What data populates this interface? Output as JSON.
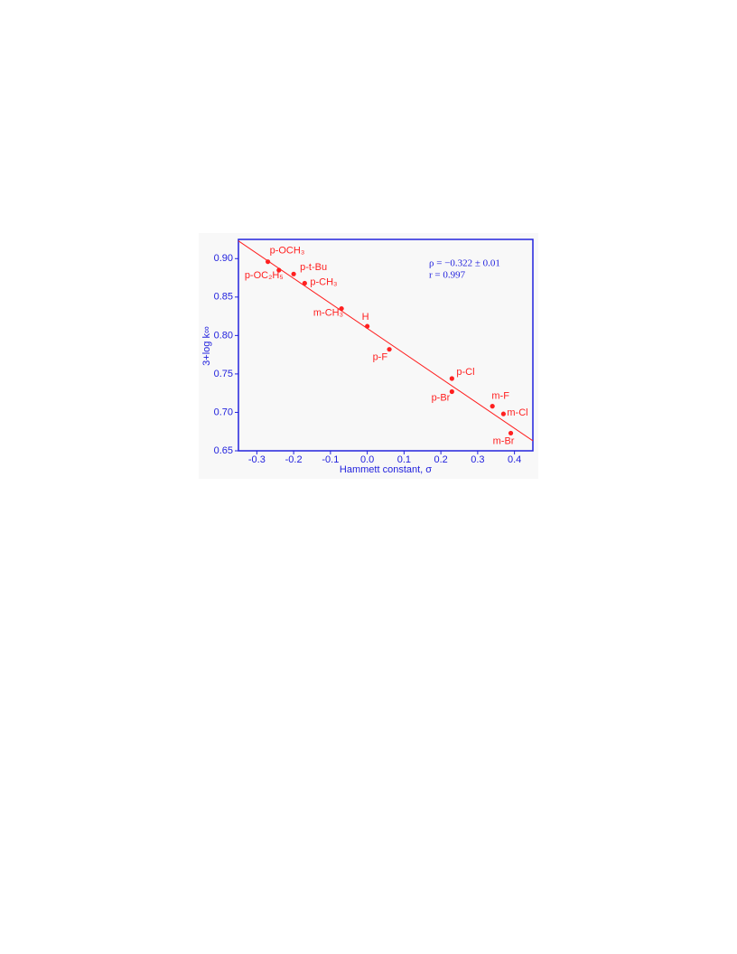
{
  "chart_data": {
    "type": "scatter",
    "xlabel": "Hammett constant, σ",
    "ylabel": "3+log k∞",
    "annotations": [
      "ρ = −0.322 ± 0.01",
      "r = 0.997"
    ],
    "labels": [
      "p-OCH₃",
      "p-OC₂H₅",
      "p-t-Bu",
      "p-CH₃",
      "m-CH₃",
      "H",
      "p-F",
      "p-Cl",
      "p-Br",
      "m-F",
      "m-Cl",
      "m-Br"
    ],
    "x": [
      -0.27,
      -0.24,
      -0.2,
      -0.17,
      -0.07,
      0,
      0.06,
      0.23,
      0.23,
      0.34,
      0.37,
      0.39
    ],
    "values": [
      0.896,
      0.885,
      0.88,
      0.868,
      0.835,
      0.812,
      0.782,
      0.744,
      0.727,
      0.708,
      0.698,
      0.673
    ],
    "color": "#ff2020",
    "axis_color": "#2222dd",
    "fit_line": {
      "x": [
        -0.35,
        0.45
      ],
      "y": [
        0.923,
        0.663
      ]
    },
    "xlim": [
      -0.35,
      0.45
    ],
    "ylim": [
      0.65,
      0.925
    ],
    "xticks": [
      -0.3,
      -0.2,
      -0.1,
      {
        "value": 0,
        "label": "0.0"
      },
      0.1,
      0.2,
      0.3,
      0.4
    ],
    "yticks": [
      {
        "value": 0.65,
        "label": "0.65"
      },
      {
        "value": 0.7,
        "label": "0.70"
      },
      {
        "value": 0.75,
        "label": "0.75"
      },
      {
        "value": 0.8,
        "label": "0.80"
      },
      {
        "value": 0.85,
        "label": "0.85"
      },
      {
        "value": 0.9,
        "label": "0.90"
      }
    ]
  }
}
